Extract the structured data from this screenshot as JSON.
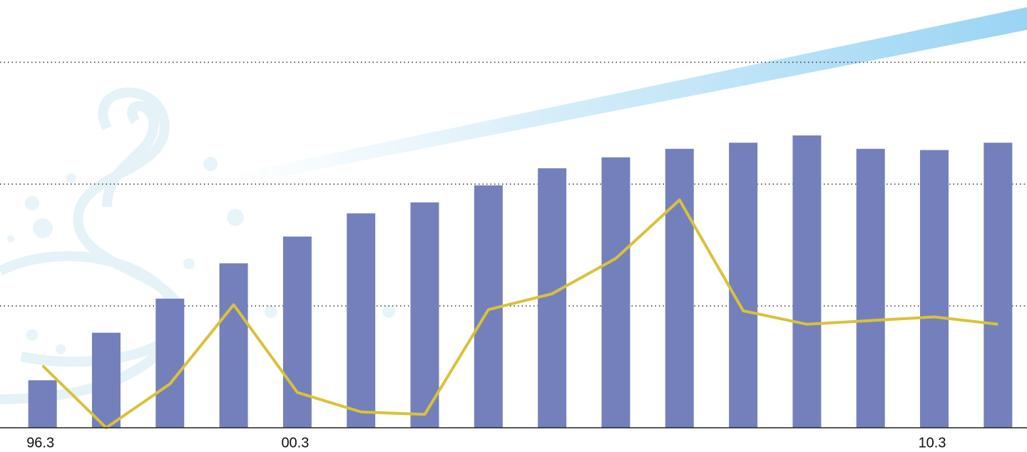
{
  "chart_data": {
    "type": "bar-line",
    "categories": [
      "96.3",
      null,
      null,
      null,
      "00.3",
      null,
      null,
      null,
      null,
      null,
      null,
      null,
      null,
      null,
      "10.3",
      null
    ],
    "series": [
      {
        "type": "bar",
        "color": "#7480bb",
        "values": [
          0.39,
          0.78,
          1.06,
          1.35,
          1.57,
          1.76,
          1.85,
          1.99,
          2.13,
          2.22,
          2.29,
          2.34,
          2.4,
          2.29,
          2.28,
          2.34
        ]
      },
      {
        "type": "line",
        "color": "#d9c23a",
        "values": [
          0.51,
          0,
          0.36,
          1.01,
          0.29,
          0.13,
          0.11,
          0.97,
          1.1,
          1.39,
          1.87,
          0.96,
          0.85,
          0.88,
          0.91,
          0.85
        ]
      }
    ],
    "ylim": [
      0,
      3.5
    ],
    "yticks": [
      1,
      2,
      3
    ],
    "grid": true
  }
}
